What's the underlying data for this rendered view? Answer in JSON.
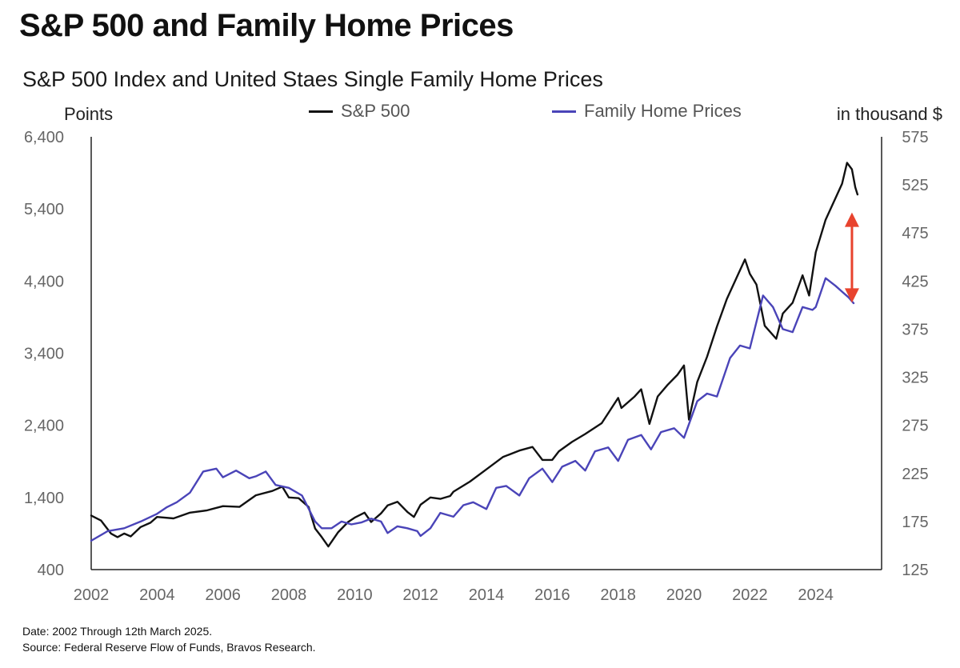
{
  "header": {
    "title": "S&P 500 and Family Home Prices",
    "subtitle": "S&P 500 Index and United Staes Single Family Home Prices"
  },
  "legend": {
    "sp500": "S&P 500",
    "home": "Family Home Prices"
  },
  "footnotes": {
    "date": "Date: 2002 Through 12th March 2025.",
    "source": "Source: Federal Reserve Flow of Funds, Bravos Research."
  },
  "colors": {
    "sp500": "#111111",
    "home": "#4a44b8",
    "arrow": "#e8432e",
    "axis": "#222222"
  },
  "chart_data": {
    "type": "line",
    "title": "S&P 500 and Family Home Prices",
    "ylabel_left": "Points",
    "ylabel_right": "in thousand $",
    "xlim": [
      2002,
      2026
    ],
    "ylim_left": [
      400,
      6400
    ],
    "ylim_right": [
      125,
      575
    ],
    "x_ticks": [
      "2002",
      "2004",
      "2006",
      "2008",
      "2010",
      "2012",
      "2014",
      "2016",
      "2018",
      "2020",
      "2022",
      "2024"
    ],
    "y_ticks_left": [
      "400",
      "1,400",
      "2,400",
      "3,400",
      "4,400",
      "5,400",
      "6,400"
    ],
    "y_ticks_right": [
      "125",
      "175",
      "225",
      "275",
      "325",
      "375",
      "425",
      "475",
      "525",
      "575"
    ],
    "annotation": {
      "type": "double-arrow",
      "x": 2025.1,
      "from": 4100,
      "to": 5350
    },
    "series": [
      {
        "name": "S&P 500",
        "axis": "left",
        "points": [
          [
            2002.0,
            1150
          ],
          [
            2002.3,
            1080
          ],
          [
            2002.6,
            900
          ],
          [
            2002.8,
            850
          ],
          [
            2003.0,
            900
          ],
          [
            2003.2,
            860
          ],
          [
            2003.5,
            990
          ],
          [
            2003.8,
            1050
          ],
          [
            2004.0,
            1130
          ],
          [
            2004.5,
            1110
          ],
          [
            2005.0,
            1190
          ],
          [
            2005.5,
            1220
          ],
          [
            2006.0,
            1280
          ],
          [
            2006.5,
            1270
          ],
          [
            2007.0,
            1430
          ],
          [
            2007.5,
            1490
          ],
          [
            2007.8,
            1550
          ],
          [
            2008.0,
            1400
          ],
          [
            2008.3,
            1390
          ],
          [
            2008.6,
            1270
          ],
          [
            2008.8,
            970
          ],
          [
            2009.0,
            850
          ],
          [
            2009.2,
            720
          ],
          [
            2009.5,
            920
          ],
          [
            2009.8,
            1060
          ],
          [
            2010.0,
            1120
          ],
          [
            2010.3,
            1190
          ],
          [
            2010.5,
            1060
          ],
          [
            2010.8,
            1180
          ],
          [
            2011.0,
            1290
          ],
          [
            2011.3,
            1340
          ],
          [
            2011.6,
            1200
          ],
          [
            2011.8,
            1130
          ],
          [
            2012.0,
            1300
          ],
          [
            2012.3,
            1400
          ],
          [
            2012.6,
            1380
          ],
          [
            2012.9,
            1420
          ],
          [
            2013.0,
            1480
          ],
          [
            2013.5,
            1620
          ],
          [
            2014.0,
            1790
          ],
          [
            2014.5,
            1960
          ],
          [
            2015.0,
            2050
          ],
          [
            2015.4,
            2100
          ],
          [
            2015.7,
            1920
          ],
          [
            2016.0,
            1920
          ],
          [
            2016.2,
            2040
          ],
          [
            2016.6,
            2170
          ],
          [
            2017.0,
            2280
          ],
          [
            2017.5,
            2430
          ],
          [
            2018.0,
            2780
          ],
          [
            2018.1,
            2640
          ],
          [
            2018.5,
            2800
          ],
          [
            2018.7,
            2900
          ],
          [
            2018.95,
            2420
          ],
          [
            2019.2,
            2800
          ],
          [
            2019.5,
            2960
          ],
          [
            2019.8,
            3100
          ],
          [
            2020.0,
            3230
          ],
          [
            2020.15,
            2480
          ],
          [
            2020.4,
            3000
          ],
          [
            2020.7,
            3350
          ],
          [
            2021.0,
            3770
          ],
          [
            2021.3,
            4150
          ],
          [
            2021.6,
            4450
          ],
          [
            2021.85,
            4700
          ],
          [
            2022.0,
            4500
          ],
          [
            2022.2,
            4350
          ],
          [
            2022.45,
            3780
          ],
          [
            2022.8,
            3600
          ],
          [
            2023.0,
            3950
          ],
          [
            2023.3,
            4100
          ],
          [
            2023.6,
            4480
          ],
          [
            2023.8,
            4200
          ],
          [
            2024.0,
            4800
          ],
          [
            2024.3,
            5250
          ],
          [
            2024.6,
            5550
          ],
          [
            2024.8,
            5750
          ],
          [
            2024.95,
            6040
          ],
          [
            2025.1,
            5950
          ],
          [
            2025.2,
            5700
          ],
          [
            2025.27,
            5600
          ]
        ]
      },
      {
        "name": "Family Home Prices",
        "axis": "right",
        "points": [
          [
            2002.0,
            155
          ],
          [
            2002.5,
            165
          ],
          [
            2003.0,
            168
          ],
          [
            2003.5,
            175
          ],
          [
            2004.0,
            183
          ],
          [
            2004.3,
            190
          ],
          [
            2004.6,
            195
          ],
          [
            2005.0,
            205
          ],
          [
            2005.4,
            227
          ],
          [
            2005.8,
            230
          ],
          [
            2006.0,
            221
          ],
          [
            2006.4,
            228
          ],
          [
            2006.8,
            220
          ],
          [
            2007.0,
            222
          ],
          [
            2007.3,
            227
          ],
          [
            2007.6,
            213
          ],
          [
            2008.0,
            210
          ],
          [
            2008.4,
            202
          ],
          [
            2008.8,
            175
          ],
          [
            2009.0,
            168
          ],
          [
            2009.3,
            168
          ],
          [
            2009.6,
            175
          ],
          [
            2009.9,
            172
          ],
          [
            2010.2,
            174
          ],
          [
            2010.5,
            178
          ],
          [
            2010.8,
            175
          ],
          [
            2011.0,
            163
          ],
          [
            2011.3,
            170
          ],
          [
            2011.6,
            168
          ],
          [
            2011.9,
            165
          ],
          [
            2012.0,
            160
          ],
          [
            2012.3,
            168
          ],
          [
            2012.6,
            184
          ],
          [
            2013.0,
            180
          ],
          [
            2013.3,
            192
          ],
          [
            2013.6,
            195
          ],
          [
            2014.0,
            188
          ],
          [
            2014.3,
            210
          ],
          [
            2014.6,
            212
          ],
          [
            2015.0,
            202
          ],
          [
            2015.3,
            220
          ],
          [
            2015.7,
            230
          ],
          [
            2016.0,
            216
          ],
          [
            2016.3,
            232
          ],
          [
            2016.7,
            238
          ],
          [
            2017.0,
            228
          ],
          [
            2017.3,
            248
          ],
          [
            2017.7,
            252
          ],
          [
            2018.0,
            238
          ],
          [
            2018.3,
            260
          ],
          [
            2018.7,
            265
          ],
          [
            2019.0,
            250
          ],
          [
            2019.3,
            268
          ],
          [
            2019.7,
            272
          ],
          [
            2020.0,
            262
          ],
          [
            2020.4,
            300
          ],
          [
            2020.7,
            308
          ],
          [
            2021.0,
            305
          ],
          [
            2021.4,
            345
          ],
          [
            2021.7,
            358
          ],
          [
            2022.0,
            355
          ],
          [
            2022.4,
            410
          ],
          [
            2022.7,
            398
          ],
          [
            2023.0,
            375
          ],
          [
            2023.3,
            372
          ],
          [
            2023.6,
            398
          ],
          [
            2023.9,
            395
          ],
          [
            2024.0,
            398
          ],
          [
            2024.3,
            428
          ],
          [
            2024.6,
            420
          ],
          [
            2024.8,
            414
          ],
          [
            2025.0,
            408
          ],
          [
            2025.15,
            402
          ]
        ]
      }
    ]
  }
}
